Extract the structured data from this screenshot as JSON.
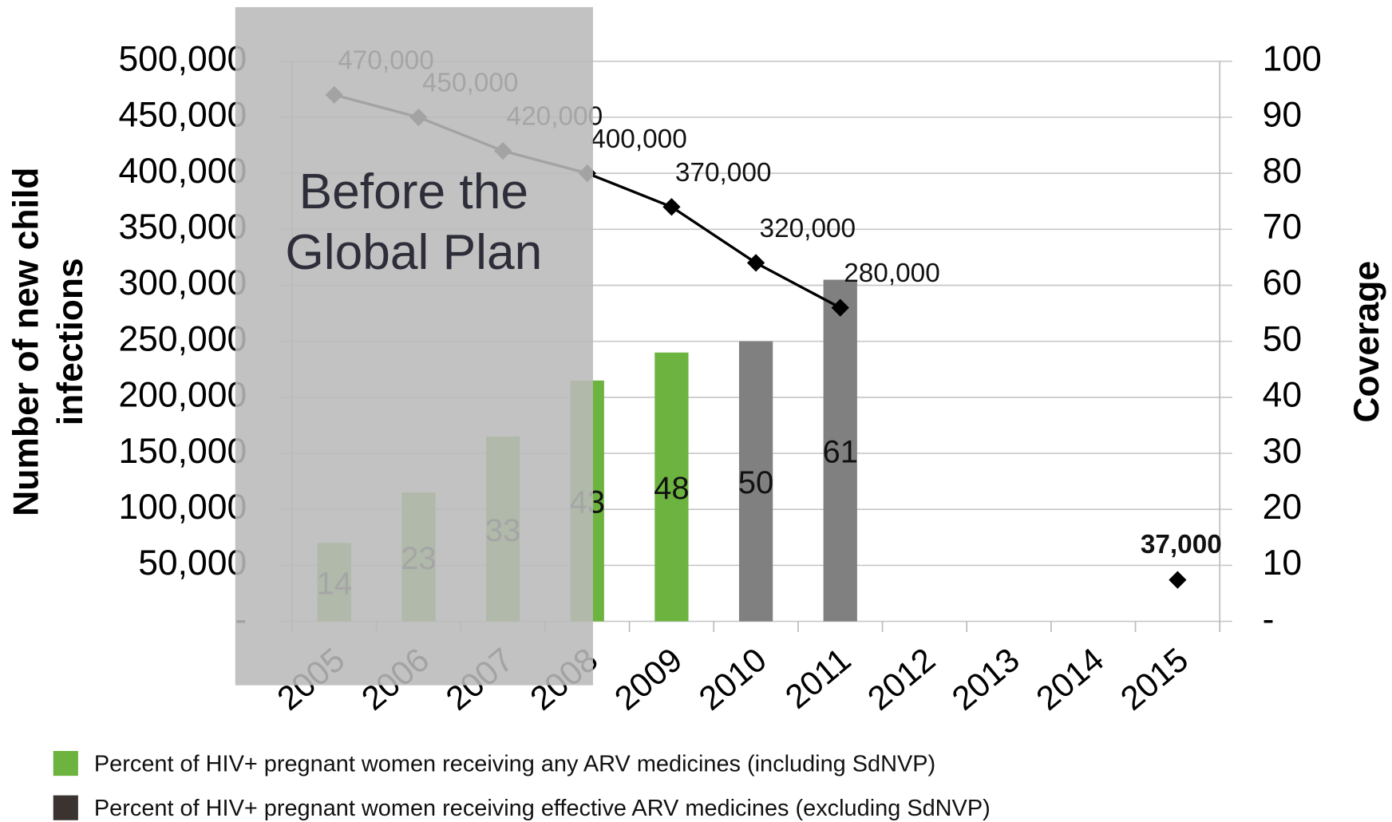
{
  "chart_data": {
    "type": "bar",
    "categories": [
      "2005",
      "2006",
      "2007",
      "2008",
      "2009",
      "2010",
      "2011",
      "2012",
      "2013",
      "2014",
      "2015"
    ],
    "series": [
      {
        "name": "Percent of HIV+ pregnant women receiving any ARV medicines (including SdNVP)",
        "color": "#6db33f",
        "axis": "y2",
        "values": [
          14,
          23,
          33,
          43,
          48,
          null,
          null,
          null,
          null,
          null,
          null
        ]
      },
      {
        "name": "Percent of HIV+ pregnant women receiving effective ARV medicines (excluding SdNVP)",
        "color": "#808080",
        "legend_color": "#3b3330",
        "axis": "y2",
        "values": [
          null,
          null,
          null,
          null,
          null,
          50,
          61,
          null,
          null,
          null,
          null
        ]
      }
    ],
    "line": {
      "color": "#000000",
      "values": [
        470000,
        450000,
        420000,
        400000,
        370000,
        320000,
        280000,
        null,
        null,
        null,
        37000
      ],
      "value_labels": [
        "470,000",
        "450,000",
        "420,000",
        "400,000",
        "370,000",
        "320,000",
        "280,000",
        null,
        null,
        null,
        "37,000"
      ]
    },
    "ylabel": [
      "Number of new child",
      "infections"
    ],
    "y2label": "Coverage",
    "ylim": [
      0,
      500000
    ],
    "yticks": [
      {
        "value": 0,
        "label": "-"
      },
      {
        "value": 50000,
        "label": "50,000"
      },
      {
        "value": 100000,
        "label": "100,000"
      },
      {
        "value": 150000,
        "label": "150,000"
      },
      {
        "value": 200000,
        "label": "200,000"
      },
      {
        "value": 250000,
        "label": "250,000"
      },
      {
        "value": 300000,
        "label": "300,000"
      },
      {
        "value": 350000,
        "label": "350,000"
      },
      {
        "value": 400000,
        "label": "400,000"
      },
      {
        "value": 450000,
        "label": "450,000"
      },
      {
        "value": 500000,
        "label": "500,000"
      }
    ],
    "y2lim": [
      0,
      100
    ],
    "y2ticks": [
      {
        "value": 0,
        "label": "-"
      },
      10,
      20,
      30,
      40,
      50,
      60,
      70,
      80,
      90,
      100
    ],
    "annotation": [
      "Before the",
      "Global Plan"
    ],
    "grid": true
  }
}
